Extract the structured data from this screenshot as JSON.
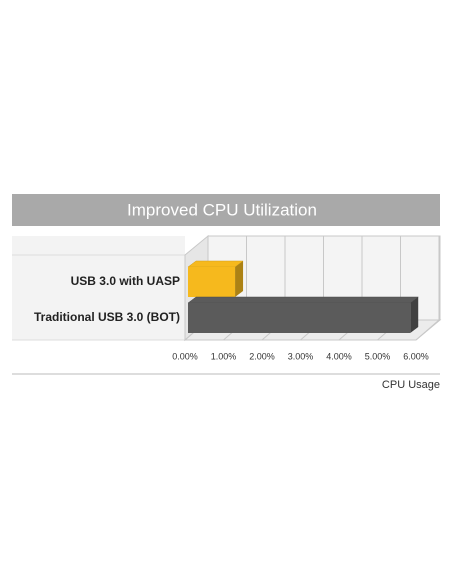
{
  "chart_data": {
    "type": "bar3d",
    "orientation": "horizontal",
    "title": "Improved CPU Utilization",
    "categories": [
      "USB 3.0 with UASP",
      "Traditional USB 3.0 (BOT)"
    ],
    "values": [
      1.3,
      5.85
    ],
    "colors": [
      "#f6b91d",
      "#5b5b5b"
    ],
    "xlabel": "CPU Usage",
    "xlim": [
      0,
      6
    ],
    "xticks": [
      {
        "value": 0,
        "label": "0.00%"
      },
      {
        "value": 1,
        "label": "1.00%"
      },
      {
        "value": 2,
        "label": "2.00%"
      },
      {
        "value": 3,
        "label": "3.00%"
      },
      {
        "value": 4,
        "label": "4.00%"
      },
      {
        "value": 5,
        "label": "5.00%"
      },
      {
        "value": 6,
        "label": "6.00%"
      }
    ],
    "grid": true
  }
}
